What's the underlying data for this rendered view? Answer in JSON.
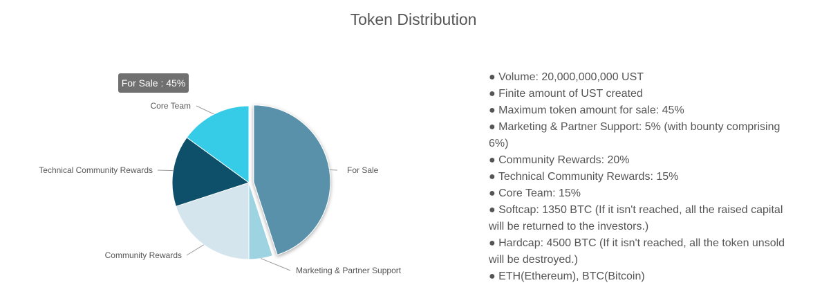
{
  "chart_data": {
    "type": "pie",
    "title": "Token Distribution",
    "slices": [
      {
        "label": "For Sale",
        "value": 45,
        "color": "#5a91aa"
      },
      {
        "label": "Marketing & Partner Support",
        "value": 5,
        "color": "#9ed4e1"
      },
      {
        "label": "Community Rewards",
        "value": 20,
        "color": "#d5e5ed"
      },
      {
        "label": "Technical Community Rewards",
        "value": 15,
        "color": "#0e4f6a"
      },
      {
        "label": "Core Team",
        "value": 15,
        "color": "#36cbe6"
      }
    ],
    "highlighted_slice": "For Sale",
    "tooltip": "For Sale : 45%",
    "legend": "none"
  },
  "notes": [
    "● Volume: 20,000,000,000 UST",
    "● Finite amount of UST created",
    "● Maximum token amount for sale: 45%",
    "● Marketing & Partner Support: 5% (with bounty comprising 6%)",
    "● Community Rewards: 20%",
    "● Technical Community Rewards: 15%",
    "● Core Team: 15%",
    "● Softcap: 1350 BTC (If it isn't reached, all the raised capital will be returned to the investors.)",
    "● Hardcap: 4500 BTC (If it isn't reached, all the token unsold will be destroyed.)",
    "● ETH(Ethereum), BTC(Bitcoin)"
  ]
}
